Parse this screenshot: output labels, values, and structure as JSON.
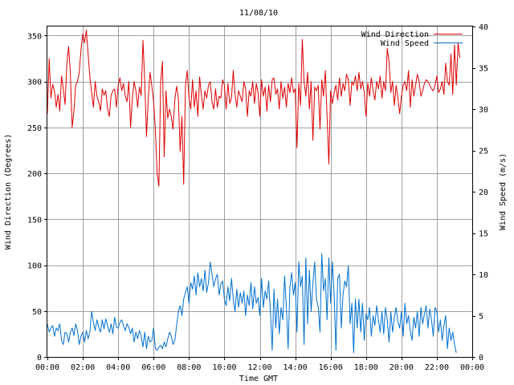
{
  "chart_data": {
    "type": "line",
    "title": "11/08/10",
    "xlabel": "Time GMT",
    "ylabel": "Wind Direction (Degrees)",
    "y2label": "Wind Speed (m/s)",
    "xlim": [
      0,
      24
    ],
    "ylim": [
      0,
      360
    ],
    "y2lim": [
      0,
      40
    ],
    "x_tick_values": [
      0,
      2,
      4,
      6,
      8,
      10,
      12,
      14,
      16,
      18,
      20,
      22,
      24
    ],
    "x_tick_labels": [
      "00:00",
      "02:00",
      "04:00",
      "06:00",
      "08:00",
      "10:00",
      "12:00",
      "14:00",
      "16:00",
      "18:00",
      "20:00",
      "22:00",
      "00:00"
    ],
    "y_ticks": [
      0,
      50,
      100,
      150,
      200,
      250,
      300,
      350
    ],
    "y2_ticks": [
      0,
      5,
      10,
      15,
      20,
      25,
      30,
      35,
      40
    ],
    "grid": true,
    "legend_position": "top-right",
    "x_step_hours": 0.1,
    "series": [
      {
        "name": "Wind Direction",
        "axis": "left",
        "color": "#e00000",
        "values": [
          265,
          325,
          282,
          297,
          290,
          272,
          286,
          268,
          306,
          292,
          275,
          320,
          338,
          308,
          250,
          268,
          296,
          300,
          310,
          335,
          352,
          342,
          356,
          330,
          305,
          288,
          272,
          300,
          284,
          278,
          268,
          292,
          285,
          290,
          270,
          262,
          285,
          290,
          292,
          272,
          296,
          304,
          290,
          298,
          284,
          278,
          300,
          250,
          282,
          300,
          290,
          272,
          294,
          285,
          345,
          300,
          240,
          282,
          310,
          295,
          278,
          248,
          200,
          186,
          300,
          322,
          218,
          290,
          260,
          270,
          262,
          248,
          280,
          295,
          282,
          224,
          262,
          188,
          296,
          312,
          282,
          270,
          302,
          272,
          290,
          262,
          305,
          285,
          270,
          290,
          282,
          296,
          300,
          278,
          270,
          292,
          272,
          284,
          282,
          302,
          296,
          270,
          298,
          276,
          282,
          312,
          286,
          272,
          290,
          284,
          278,
          300,
          292,
          262,
          290,
          284,
          300,
          276,
          298,
          288,
          262,
          302,
          284,
          294,
          268,
          296,
          278,
          302,
          304,
          286,
          292,
          270,
          300,
          282,
          294,
          272,
          298,
          288,
          304,
          288,
          292,
          228,
          298,
          274,
          346,
          300,
          284,
          310,
          270,
          300,
          236,
          294,
          290,
          296,
          248,
          302,
          284,
          312,
          262,
          210,
          290,
          276,
          288,
          296,
          280,
          304,
          284,
          298,
          290,
          308,
          302,
          274,
          300,
          296,
          306,
          290,
          310,
          292,
          300,
          288,
          262,
          298,
          284,
          304,
          290,
          280,
          300,
          292,
          306,
          282,
          300,
          290,
          336,
          322,
          288,
          300,
          274,
          296,
          282,
          265,
          284,
          296,
          300,
          290,
          312,
          272,
          302,
          284,
          296,
          308,
          300,
          284,
          290,
          298,
          302,
          300,
          296,
          292,
          290,
          296,
          306,
          288,
          292,
          300,
          286,
          320,
          300,
          296,
          330,
          286,
          340,
          296,
          342,
          326
        ]
      },
      {
        "name": "Wind Speed",
        "axis": "right",
        "color": "#0070d0",
        "values": [
          4.0,
          3.0,
          3.5,
          3.8,
          2.5,
          3.5,
          3.2,
          4.0,
          2.0,
          1.5,
          3.0,
          2.8,
          1.8,
          3.0,
          3.5,
          2.6,
          4.0,
          3.2,
          1.5,
          2.5,
          3.0,
          1.8,
          3.2,
          2.2,
          3.0,
          5.5,
          4.2,
          3.2,
          4.5,
          3.6,
          3.0,
          4.5,
          3.4,
          4.6,
          3.8,
          3.0,
          4.0,
          2.8,
          4.8,
          3.6,
          3.5,
          4.2,
          4.5,
          3.8,
          3.2,
          4.0,
          3.6,
          2.8,
          3.5,
          1.8,
          3.0,
          2.2,
          3.2,
          2.5,
          1.2,
          3.0,
          1.0,
          2.5,
          1.8,
          2.0,
          3.5,
          1.0,
          0.8,
          1.2,
          1.4,
          1.0,
          1.8,
          1.2,
          2.2,
          3.0,
          2.5,
          1.5,
          2.0,
          3.8,
          5.5,
          6.2,
          5.0,
          7.0,
          7.8,
          8.5,
          6.5,
          9.0,
          8.2,
          9.8,
          7.5,
          10.2,
          8.5,
          9.5,
          8.0,
          10.5,
          7.8,
          9.0,
          11.5,
          10.0,
          8.5,
          9.5,
          10.0,
          7.5,
          8.8,
          9.2,
          7.0,
          6.2,
          8.5,
          6.8,
          9.5,
          7.0,
          5.5,
          8.2,
          6.0,
          7.8,
          6.5,
          8.0,
          5.0,
          7.5,
          6.2,
          9.0,
          5.8,
          8.5,
          6.5,
          7.2,
          5.0,
          9.5,
          6.0,
          8.0,
          7.0,
          9.2,
          5.5,
          0.8,
          8.2,
          3.5,
          7.0,
          2.8,
          6.0,
          4.5,
          9.8,
          6.0,
          1.0,
          8.5,
          10.2,
          7.5,
          9.0,
          3.0,
          11.5,
          8.5,
          9.8,
          1.5,
          12.0,
          4.0,
          10.5,
          5.5,
          9.0,
          11.5,
          7.0,
          6.0,
          3.0,
          12.5,
          8.0,
          9.5,
          4.5,
          12.0,
          6.5,
          11.5,
          7.5,
          0.8,
          9.5,
          10.0,
          3.5,
          7.5,
          9.2,
          8.5,
          11.0,
          4.0,
          6.5,
          0.5,
          7.0,
          3.5,
          7.0,
          3.0,
          6.5,
          2.0,
          5.2,
          4.5,
          6.0,
          2.5,
          5.0,
          3.8,
          6.2,
          4.5,
          3.0,
          5.5,
          2.8,
          6.0,
          4.5,
          1.8,
          5.5,
          3.0,
          4.8,
          6.0,
          4.2,
          3.5,
          5.5,
          2.5,
          6.5,
          4.0,
          5.0,
          3.2,
          2.0,
          4.8,
          3.5,
          5.5,
          2.5,
          6.0,
          4.0,
          5.2,
          6.2,
          3.5,
          5.8,
          4.5,
          2.5,
          6.0,
          5.5,
          3.0,
          4.5,
          2.0,
          3.8,
          5.0,
          1.0,
          3.5,
          2.0,
          3.0,
          1.5,
          0.5
        ]
      }
    ]
  }
}
